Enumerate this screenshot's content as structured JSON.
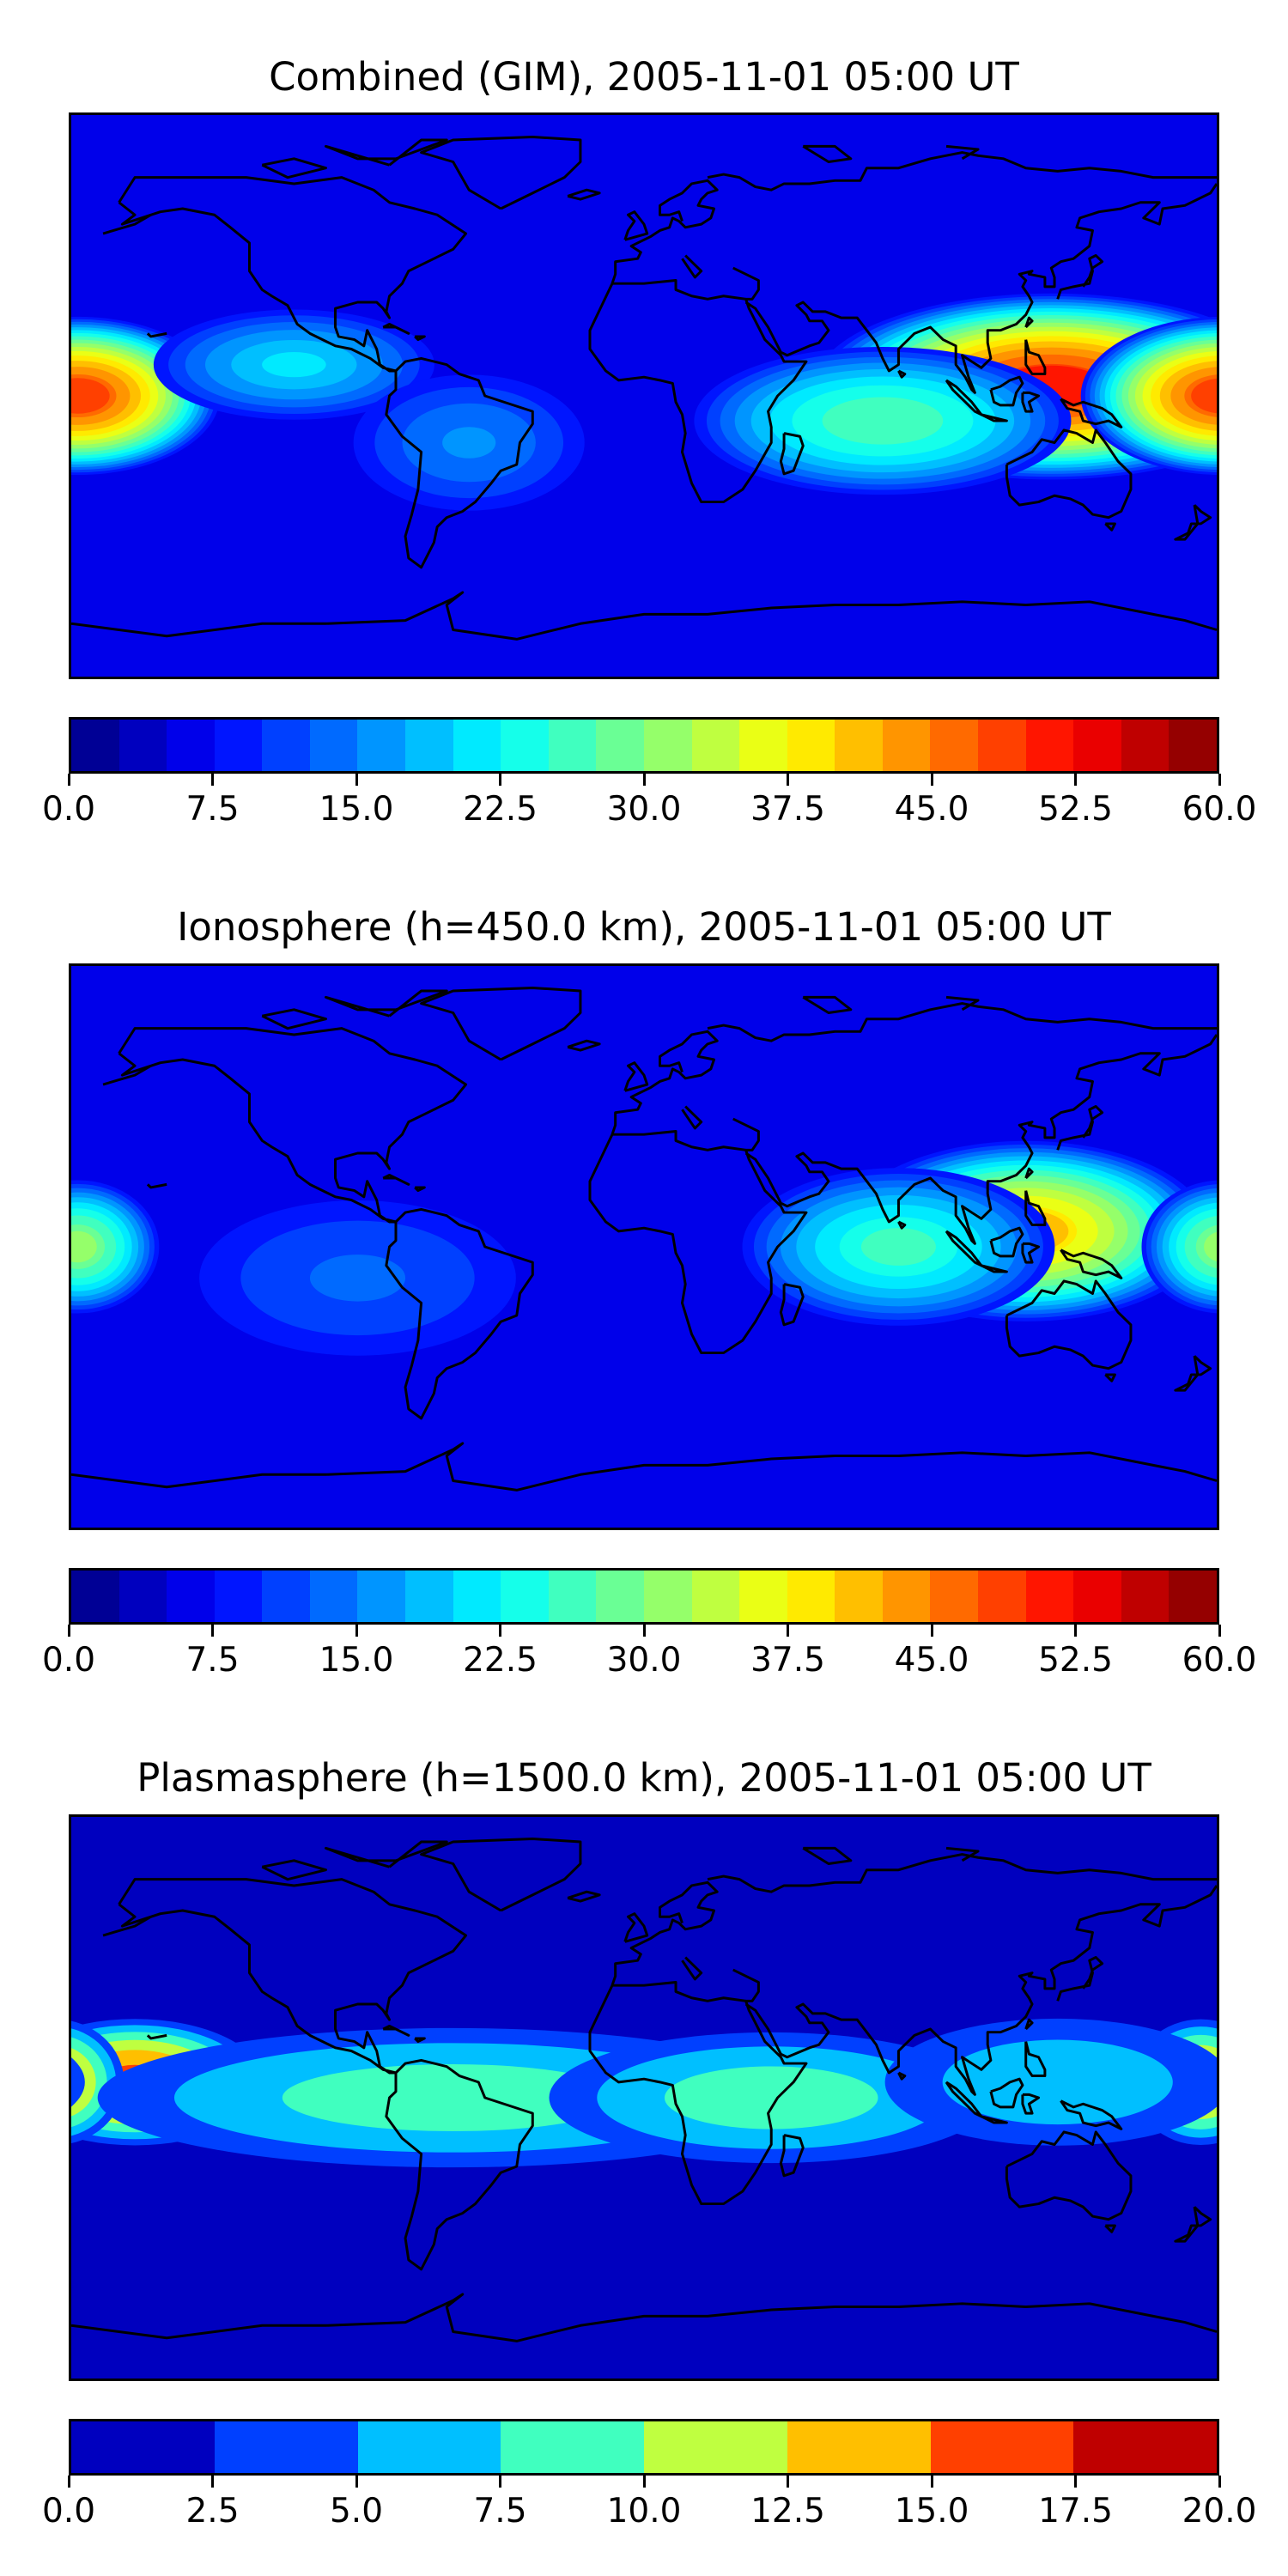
{
  "panels": [
    {
      "id": "combined",
      "title": "Combined (GIM), 2005-11-01 05:00 UT",
      "colorbar": {
        "min": 0.0,
        "max": 60.0,
        "ticks": [
          "0.0",
          "7.5",
          "15.0",
          "22.5",
          "30.0",
          "37.5",
          "45.0",
          "52.5",
          "60.0"
        ],
        "levels": 24
      },
      "blobs": [
        {
          "lon": 128,
          "lat": 3,
          "value": 50,
          "spread_lon": 50,
          "spread_lat": 20
        },
        {
          "lon": -178,
          "lat": 0,
          "value": 48,
          "spread_lon": 30,
          "spread_lat": 17
        },
        {
          "lon": 75,
          "lat": -8,
          "value": 27,
          "spread_lon": 40,
          "spread_lat": 16
        },
        {
          "lon": -110,
          "lat": 10,
          "value": 20,
          "spread_lon": 30,
          "spread_lat": 12
        },
        {
          "lon": -55,
          "lat": -15,
          "value": 15,
          "spread_lon": 25,
          "spread_lat": 15
        }
      ],
      "background_value": 7
    },
    {
      "id": "ionosphere",
      "title": "Ionosphere  (h=450.0 km), 2005-11-01 05:00 UT",
      "colorbar": {
        "min": 0.0,
        "max": 60.0,
        "ticks": [
          "0.0",
          "7.5",
          "15.0",
          "22.5",
          "30.0",
          "37.5",
          "45.0",
          "52.5",
          "60.0"
        ],
        "levels": 24
      },
      "blobs": [
        {
          "lon": 120,
          "lat": 5,
          "value": 40,
          "spread_lon": 40,
          "spread_lat": 20
        },
        {
          "lon": 80,
          "lat": 0,
          "value": 25,
          "spread_lon": 35,
          "spread_lat": 18
        },
        {
          "lon": -178,
          "lat": 0,
          "value": 30,
          "spread_lon": 18,
          "spread_lat": 15
        },
        {
          "lon": -90,
          "lat": -10,
          "value": 13,
          "spread_lon": 40,
          "spread_lat": 20
        }
      ],
      "background_value": 5
    },
    {
      "id": "plasmasphere",
      "title": "Plasmasphere (h=1500.0 km), 2005-11-01 05:00 UT",
      "colorbar": {
        "min": 0.0,
        "max": 20.0,
        "ticks": [
          "0.0",
          "2.5",
          "5.0",
          "7.5",
          "10.0",
          "12.5",
          "15.0",
          "17.5",
          "20.0"
        ],
        "levels": 8
      },
      "blobs": [
        {
          "lon": -160,
          "lat": 5,
          "value": 16,
          "spread_lon": 28,
          "spread_lat": 14
        },
        {
          "lon": 175,
          "lat": 5,
          "value": 14,
          "spread_lon": 15,
          "spread_lat": 14
        },
        {
          "lon": -60,
          "lat": 0,
          "value": 9,
          "spread_lon": 80,
          "spread_lat": 16
        },
        {
          "lon": 40,
          "lat": 0,
          "value": 9,
          "spread_lon": 50,
          "spread_lat": 15
        },
        {
          "lon": 130,
          "lat": 5,
          "value": 7,
          "spread_lon": 40,
          "spread_lat": 15
        }
      ],
      "background_value": 1.5
    }
  ]
}
